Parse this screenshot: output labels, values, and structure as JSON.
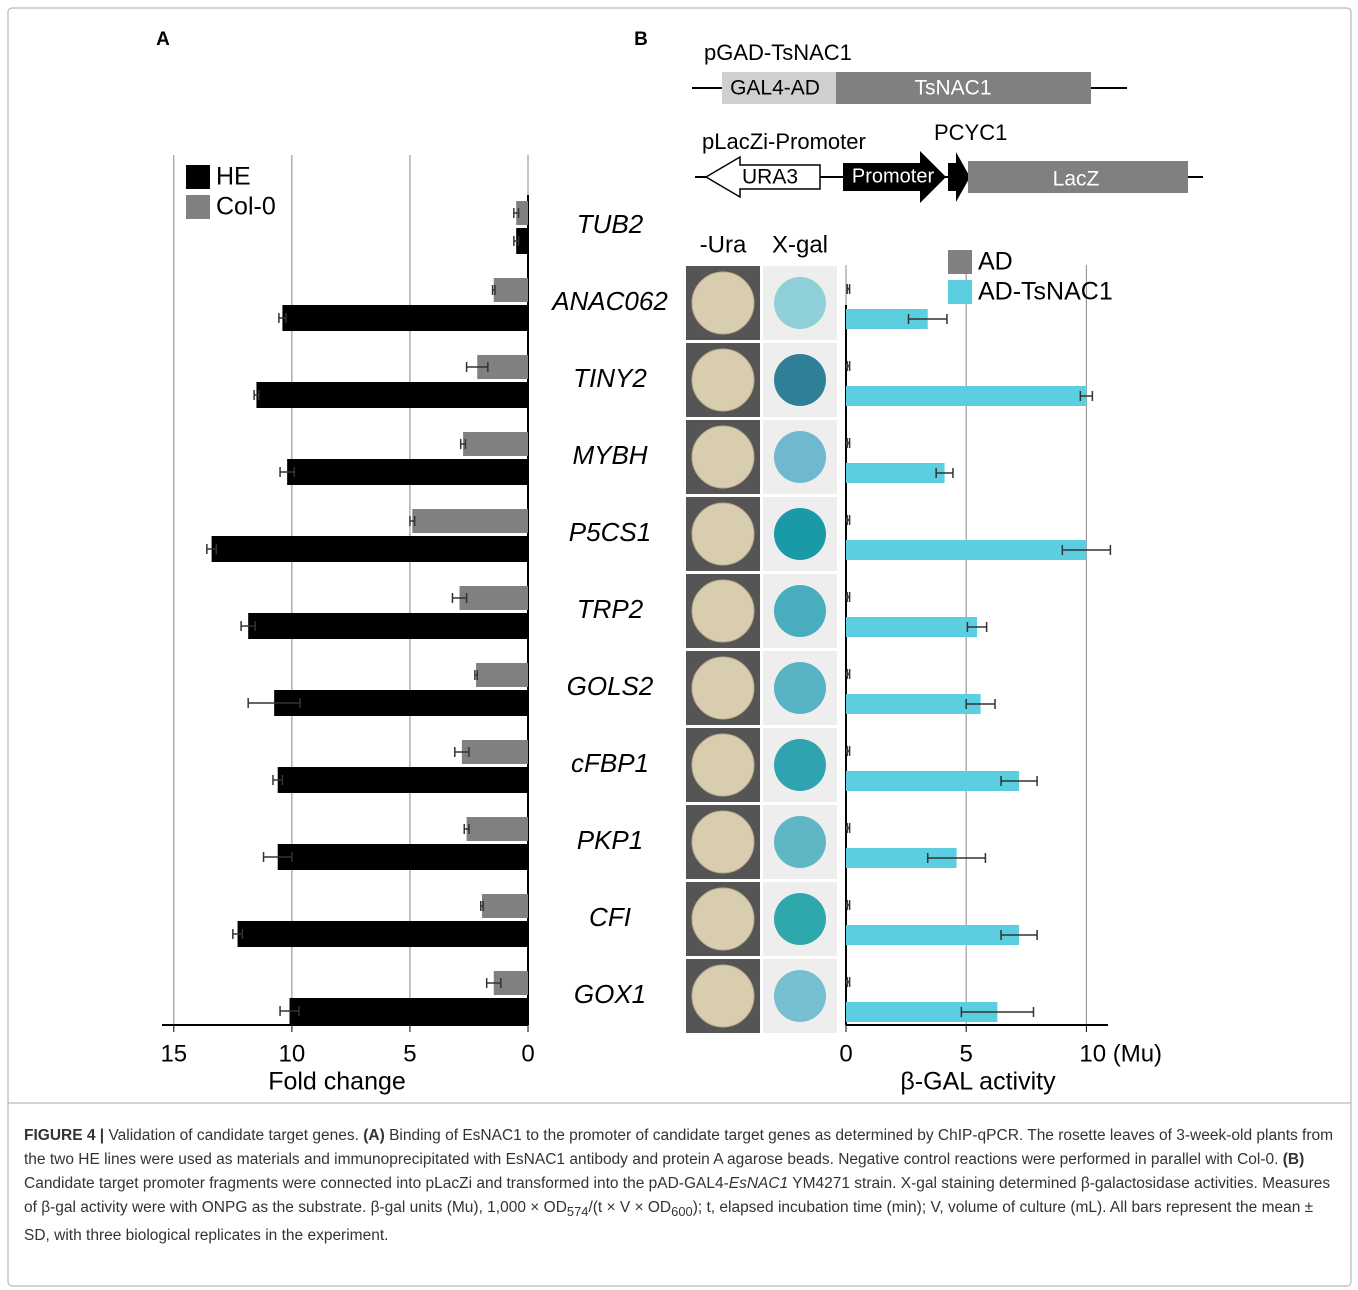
{
  "panels": [
    "A",
    "B"
  ],
  "diagram": {
    "plasmid1": "pGAD-TsNAC1",
    "gal4ad": "GAL4-AD",
    "tsnac1": "TsNAC1",
    "plasmid2": "pLacZi-Promoter",
    "ura3": "URA3",
    "promoter": "Promoter",
    "pcyc1": "PCYC1",
    "lacz": "LacZ"
  },
  "image_columns": [
    "-Ura",
    "X-gal"
  ],
  "chart_data": [
    {
      "type": "hbar",
      "xlabel": "Fold change",
      "categories": [
        "TUB2",
        "ANAC062",
        "TINY2",
        "MYBH",
        "P5CS1",
        "TRP2",
        "GOLS2",
        "cFBP1",
        "PKP1",
        "CFI",
        "GOX1"
      ],
      "series": [
        {
          "name": "HE",
          "color": "#000000",
          "values": [
            0.5,
            10.4,
            11.5,
            10.2,
            13.4,
            11.85,
            10.75,
            10.6,
            10.6,
            12.3,
            10.1
          ],
          "errors": [
            0.1,
            0.15,
            0.1,
            0.3,
            0.2,
            0.3,
            1.1,
            0.2,
            0.6,
            0.2,
            0.4
          ]
        },
        {
          "name": "Col-0",
          "color": "#808080",
          "values": [
            0.5,
            1.45,
            2.15,
            2.75,
            4.9,
            2.9,
            2.2,
            2.8,
            2.6,
            1.95,
            1.45
          ],
          "errors": [
            0.1,
            0.05,
            0.45,
            0.1,
            0.1,
            0.3,
            0.05,
            0.3,
            0.1,
            0.05,
            0.3
          ]
        }
      ],
      "xlim": [
        15.5,
        0
      ],
      "xticks": [
        15,
        10,
        5,
        0
      ],
      "grid": true
    },
    {
      "type": "hbar",
      "xlabel": "β-GAL activity",
      "series": [
        {
          "name": "AD",
          "color": "#808080",
          "values": [
            0.1,
            0.1,
            0.1,
            0.1,
            0.1,
            0.1,
            0.1,
            0.1,
            0.1,
            0.1
          ],
          "errors": [
            0.05,
            0.05,
            0.05,
            0.05,
            0.05,
            0.05,
            0.05,
            0.05,
            0.05,
            0.05
          ]
        },
        {
          "name": "AD-TsNAC1",
          "color": "#5bcfe0",
          "values": [
            3.4,
            10.0,
            4.1,
            10.0,
            5.45,
            5.6,
            7.2,
            4.6,
            7.2,
            6.3
          ],
          "errors": [
            0.8,
            0.25,
            0.35,
            1.0,
            0.4,
            0.6,
            0.75,
            1.2,
            0.75,
            1.5
          ]
        }
      ],
      "xlim": [
        0,
        10.9
      ],
      "xticks": [
        0,
        5,
        {
          "value": 10,
          "label": "10 (Mu)"
        }
      ],
      "grid": true
    }
  ],
  "caption": [
    "FIGURE 4 |",
    " Validation of candidate target genes. ",
    "(A)",
    " Binding of EsNAC1 to the promoter of candidate target genes as determined by ChIP-qPCR. The rosette leaves of 3-week-old plants from the two HE lines were used as materials and immunoprecipitated with EsNAC1 antibody and protein A agarose beads. Negative control reactions were performed in parallel with Col-0. ",
    "(B)",
    " Candidate target promoter fragments were connected into pLacZi and transformed into the pAD-GAL4-",
    "EsNAC1",
    " YM4271 strain. X-gal staining determined β-galactosidase activities. Measures of β-gal activity were with ONPG as the substrate. β-gal units (Mu), 1,000 × OD",
    "574",
    "/(t × V × OD",
    "600",
    "); t, elapsed incubation time (min); V, volume of culture (mL). All bars represent the mean ± SD, with three biological replicates in the experiment."
  ]
}
